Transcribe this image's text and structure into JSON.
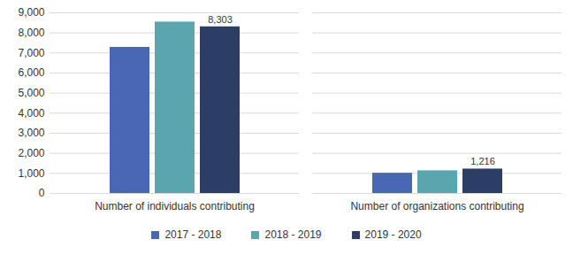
{
  "chart_data": {
    "type": "bar",
    "categories": [
      "Number of individuals contributing",
      "Number of organizations contributing"
    ],
    "series": [
      {
        "name": "2017 - 2018",
        "color": "#4a67b5",
        "values": [
          7280,
          1010
        ]
      },
      {
        "name": "2018 - 2019",
        "color": "#5ba5ae",
        "values": [
          8540,
          1130
        ]
      },
      {
        "name": "2019 - 2020",
        "color": "#2c3d66",
        "values": [
          8303,
          1216
        ],
        "value_labels": [
          "8,303",
          "1,216"
        ],
        "data_labels": true
      }
    ],
    "ylim": [
      0,
      9000
    ],
    "yticks": [
      0,
      {
        "value": 1000,
        "label": "1,000"
      },
      {
        "value": 2000,
        "label": "2,000"
      },
      {
        "value": 3000,
        "label": "3,000"
      },
      {
        "value": 4000,
        "label": "4,000"
      },
      {
        "value": 5000,
        "label": "5,000"
      },
      {
        "value": 6000,
        "label": "6,000"
      },
      {
        "value": 7000,
        "label": "7,000"
      },
      {
        "value": 8000,
        "label": "8,000"
      },
      {
        "value": 9000,
        "label": "9,000"
      }
    ],
    "grid": true,
    "legend": "bottom"
  }
}
